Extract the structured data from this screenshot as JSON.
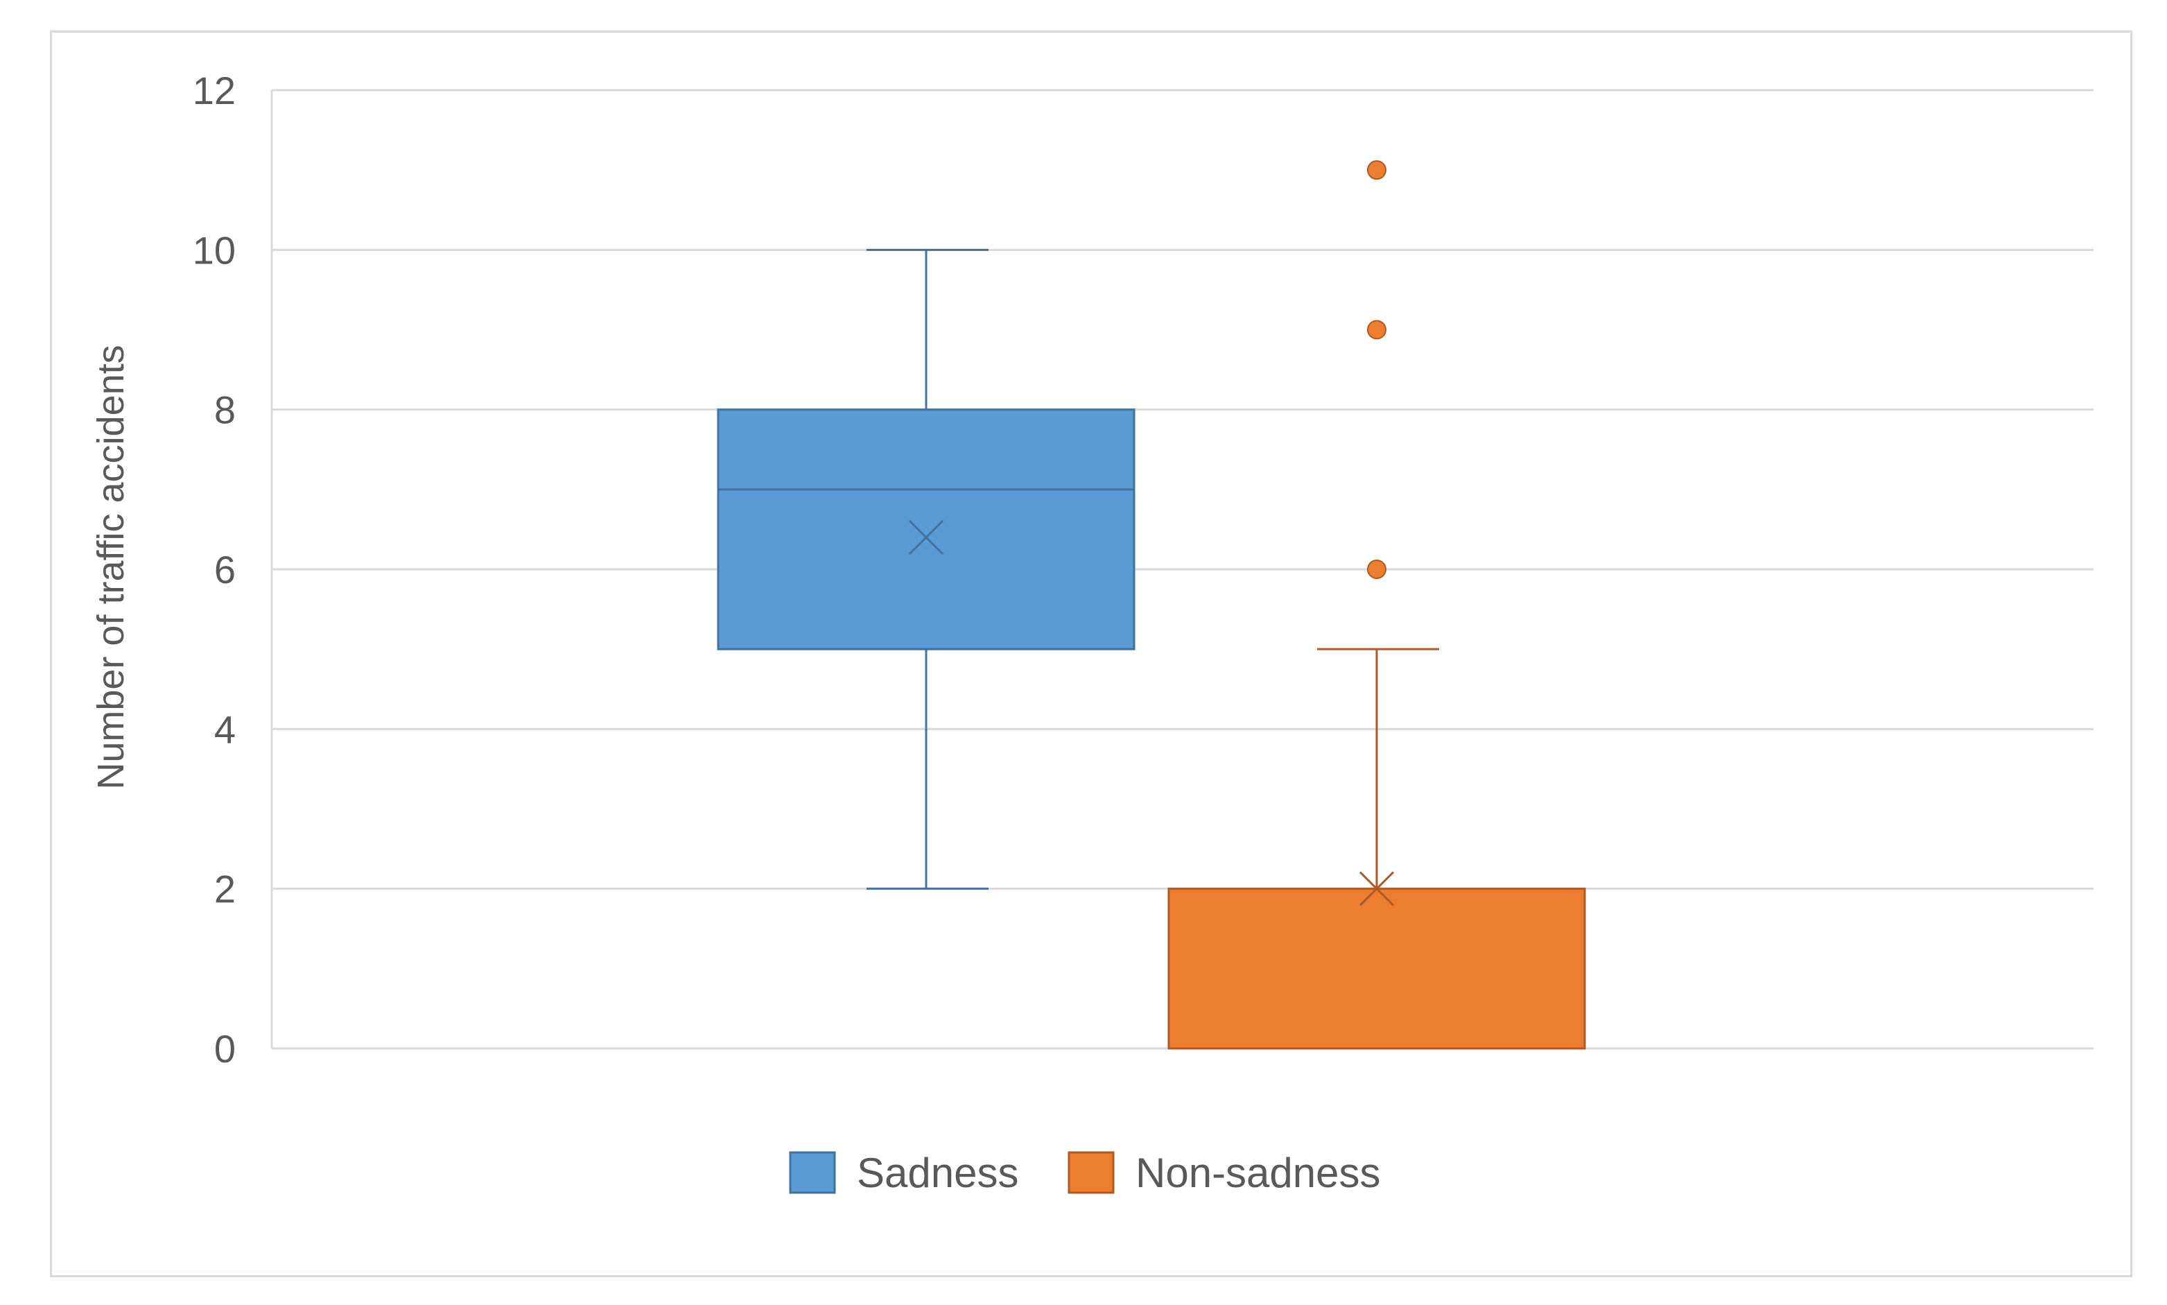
{
  "chart_data": {
    "type": "box",
    "title": "",
    "xlabel": "",
    "ylabel": "Number of traffic accidents",
    "ylim": [
      0,
      12
    ],
    "yticks": [
      0,
      2,
      4,
      6,
      8,
      10,
      12
    ],
    "grid": true,
    "legend_position": "bottom",
    "series": [
      {
        "name": "Sadness",
        "color": "#5b9bd5",
        "edge_color": "#41719c",
        "min": 2,
        "q1": 5,
        "median": 7,
        "q3": 8,
        "max": 10,
        "mean": 6.4,
        "outliers": []
      },
      {
        "name": "Non-sadness",
        "color": "#ed7d31",
        "edge_color": "#ae5a21",
        "min": 0,
        "q1": 0,
        "median": 0,
        "q3": 2,
        "max": 5,
        "mean": 2.0,
        "outliers": [
          6,
          9,
          11
        ]
      }
    ]
  }
}
